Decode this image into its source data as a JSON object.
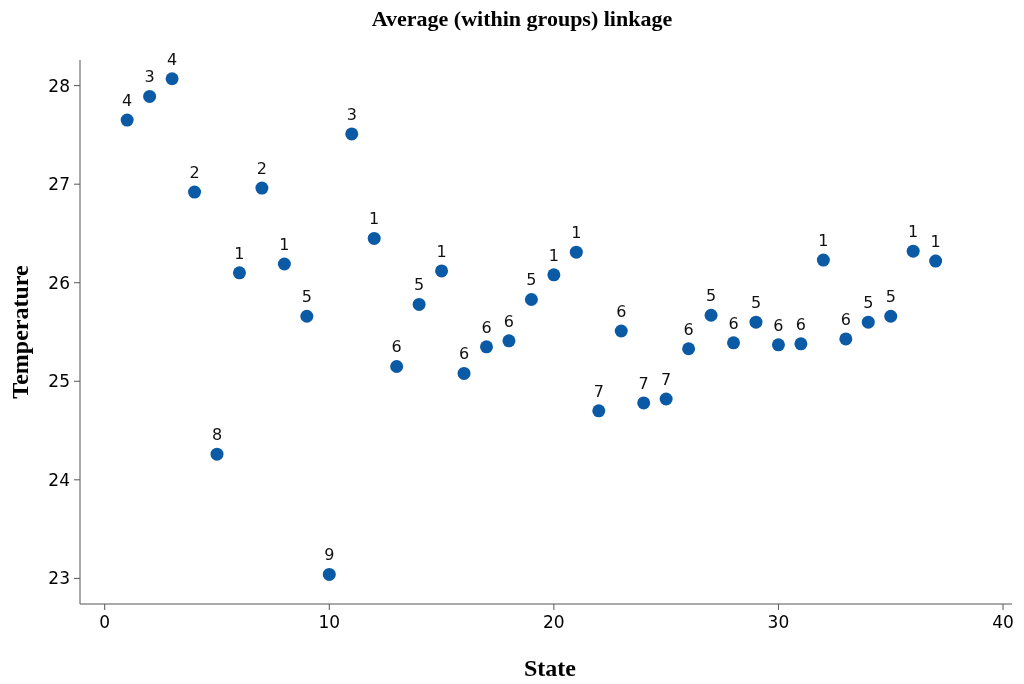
{
  "chart_data": {
    "type": "scatter",
    "title": "Average (within groups) linkage",
    "xlabel": "State",
    "ylabel": "Temperature",
    "x": [
      1,
      2,
      3,
      4,
      5,
      6,
      7,
      8,
      9,
      10,
      11,
      12,
      13,
      14,
      15,
      16,
      17,
      18,
      19,
      20,
      21,
      22,
      23,
      24,
      25,
      26,
      27,
      28,
      29,
      30,
      31,
      32,
      33,
      34,
      35,
      36,
      37
    ],
    "series": [
      {
        "color": "#0b5aa5",
        "values": [
          27.65,
          27.89,
          28.07,
          26.92,
          24.26,
          26.1,
          26.96,
          26.19,
          25.66,
          23.04,
          27.51,
          26.45,
          25.15,
          25.78,
          26.12,
          25.08,
          25.35,
          25.41,
          25.83,
          26.08,
          26.31,
          24.7,
          25.51,
          24.78,
          24.82,
          25.33,
          25.67,
          25.39,
          25.6,
          25.37,
          25.38,
          26.23,
          25.43,
          25.6,
          25.66,
          26.32,
          26.22
        ]
      }
    ],
    "annotations": [
      {
        "text": "4",
        "x": 1,
        "y": 27.65
      },
      {
        "text": "3",
        "x": 2,
        "y": 27.89
      },
      {
        "text": "4",
        "x": 3,
        "y": 28.07
      },
      {
        "text": "2",
        "x": 4,
        "y": 26.92
      },
      {
        "text": "8",
        "x": 5,
        "y": 24.26
      },
      {
        "text": "1",
        "x": 6,
        "y": 26.1
      },
      {
        "text": "2",
        "x": 7,
        "y": 26.96
      },
      {
        "text": "1",
        "x": 8,
        "y": 26.19
      },
      {
        "text": "5",
        "x": 9,
        "y": 25.66
      },
      {
        "text": "9",
        "x": 10,
        "y": 23.04
      },
      {
        "text": "3",
        "x": 11,
        "y": 27.51
      },
      {
        "text": "1",
        "x": 12,
        "y": 26.45
      },
      {
        "text": "6",
        "x": 13,
        "y": 25.15
      },
      {
        "text": "5",
        "x": 14,
        "y": 25.78
      },
      {
        "text": "1",
        "x": 15,
        "y": 26.12
      },
      {
        "text": "6",
        "x": 16,
        "y": 25.08
      },
      {
        "text": "6",
        "x": 17,
        "y": 25.35
      },
      {
        "text": "6",
        "x": 18,
        "y": 25.41
      },
      {
        "text": "5",
        "x": 19,
        "y": 25.83
      },
      {
        "text": "1",
        "x": 20,
        "y": 26.08
      },
      {
        "text": "1",
        "x": 21,
        "y": 26.31
      },
      {
        "text": "7",
        "x": 22,
        "y": 24.7
      },
      {
        "text": "6",
        "x": 23,
        "y": 25.51
      },
      {
        "text": "7",
        "x": 24,
        "y": 24.78
      },
      {
        "text": "7",
        "x": 25,
        "y": 24.82
      },
      {
        "text": "6",
        "x": 26,
        "y": 25.33
      },
      {
        "text": "5",
        "x": 27,
        "y": 25.67
      },
      {
        "text": "6",
        "x": 28,
        "y": 25.39
      },
      {
        "text": "5",
        "x": 29,
        "y": 25.6
      },
      {
        "text": "6",
        "x": 30,
        "y": 25.37
      },
      {
        "text": "6",
        "x": 31,
        "y": 25.38
      },
      {
        "text": "1",
        "x": 32,
        "y": 26.23
      },
      {
        "text": "6",
        "x": 33,
        "y": 25.43
      },
      {
        "text": "5",
        "x": 34,
        "y": 25.6
      },
      {
        "text": "5",
        "x": 35,
        "y": 25.66
      },
      {
        "text": "1",
        "x": 36,
        "y": 26.32
      },
      {
        "text": "1",
        "x": 37,
        "y": 26.22
      }
    ],
    "xlim": [
      -1.1,
      40.4
    ],
    "ylim": [
      22.74,
      28.26
    ],
    "xticks": [
      0,
      10,
      20,
      30,
      40
    ],
    "yticks": [
      23,
      24,
      25,
      26,
      27,
      28
    ],
    "grid": false,
    "marker": "circle"
  }
}
